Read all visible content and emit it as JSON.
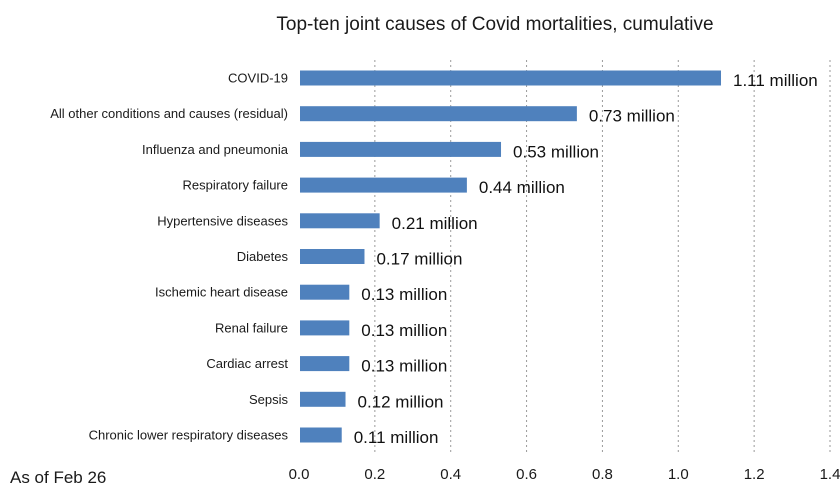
{
  "chart_data": {
    "type": "bar",
    "orientation": "horizontal",
    "title": "Top-ten joint causes of Covid mortalities, cumulative",
    "footnote": "As of Feb 26",
    "categories": [
      "COVID-19",
      "All other conditions and causes (residual)",
      "Influenza and pneumonia",
      "Respiratory failure",
      "Hypertensive diseases",
      "Diabetes",
      "Ischemic heart disease",
      "Renal failure",
      "Cardiac arrest",
      "Sepsis",
      "Chronic lower respiratory diseases"
    ],
    "values": [
      1.11,
      0.73,
      0.53,
      0.44,
      0.21,
      0.17,
      0.13,
      0.13,
      0.13,
      0.12,
      0.11
    ],
    "data_labels": [
      "1.11 million",
      "0.73 million",
      "0.53 million",
      "0.44 million",
      "0.21 million",
      "0.17 million",
      "0.13 million",
      "0.13 million",
      "0.13 million",
      "0.12 million",
      "0.11 million"
    ],
    "xlim": [
      0,
      1.4
    ],
    "xticks": [
      "0.0",
      "0.2",
      "0.4",
      "0.6",
      "0.8",
      "1.0",
      "1.2",
      "1.4"
    ],
    "xtick_values": [
      0,
      0.2,
      0.4,
      0.6,
      0.8,
      1.0,
      1.2,
      1.4
    ],
    "grid": "vertical dashed",
    "bar_color": "#4f81bd"
  }
}
